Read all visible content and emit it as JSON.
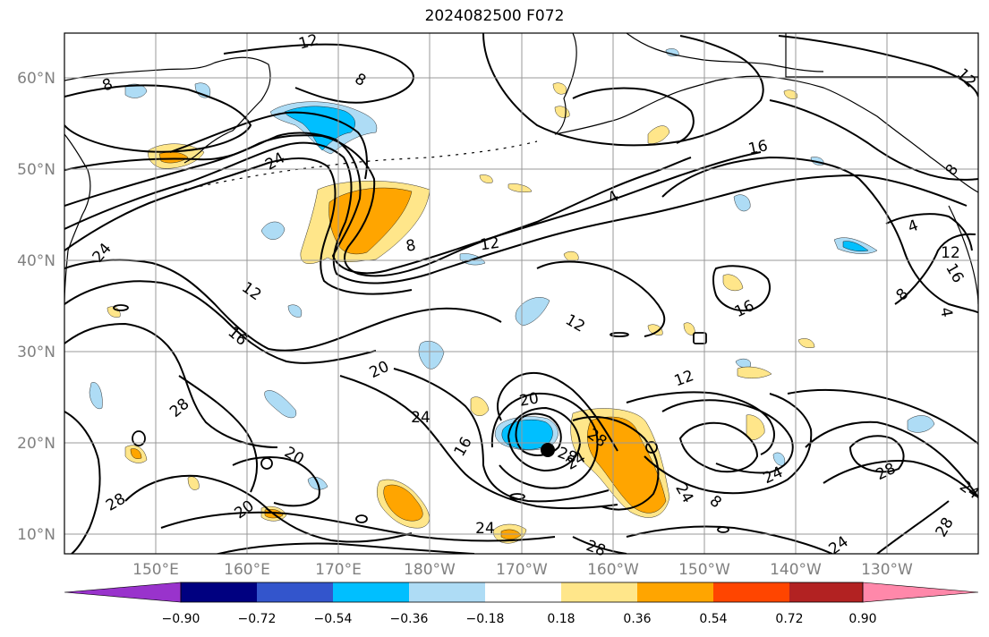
{
  "title": "2024082500 F072",
  "lat_labels": [
    "60°N",
    "50°N",
    "40°N",
    "30°N",
    "20°N",
    "10°N"
  ],
  "lon_labels": [
    "150°E",
    "160°E",
    "170°E",
    "180°W",
    "170°W",
    "160°W",
    "150°W",
    "140°W",
    "130°W"
  ],
  "contour_labels": [
    "12",
    "8",
    "8",
    "12",
    "8",
    "24",
    "16",
    "8",
    "4",
    "4",
    "12",
    "12",
    "12",
    "16",
    "16",
    "8",
    "4",
    "24",
    "12",
    "16",
    "20",
    "24",
    "20",
    "28",
    "20",
    "28",
    "16",
    "20",
    "28",
    "24",
    "12",
    "24",
    "8",
    "24",
    "28",
    "24",
    "28",
    "24",
    "28",
    "28",
    "24"
  ],
  "colorbar": {
    "labels": [
      "−0.90",
      "−0.72",
      "−0.54",
      "−0.36",
      "−0.18",
      "0.18",
      "0.36",
      "0.54",
      "0.72",
      "0.90"
    ],
    "colors": [
      "#9933cc",
      "#000080",
      "#3355cc",
      "#00bfff",
      "#aedcf5",
      "#ffffff",
      "#ffe68a",
      "#ffa500",
      "#ff4500",
      "#b22222",
      "#ff88aa"
    ]
  },
  "colors": {
    "contour": "#000000",
    "grid": "#999999",
    "coast": "#000000",
    "storm_marker": "#000000"
  }
}
